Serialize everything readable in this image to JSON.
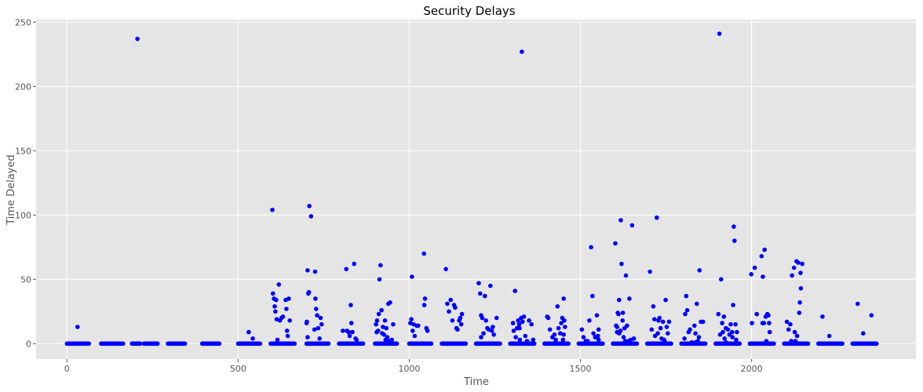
{
  "chart_data": {
    "type": "scatter",
    "title": "Security Delays",
    "xlabel": "Time",
    "ylabel": "Time Delayed",
    "xlim": [
      -90,
      2480
    ],
    "ylim": [
      -12,
      252
    ],
    "x_ticks": [
      0,
      500,
      1000,
      1500,
      2000
    ],
    "y_ticks": [
      0,
      50,
      100,
      150,
      200,
      250
    ],
    "grid": true,
    "style": "ggplot",
    "colors": {
      "marker": "#0000ff",
      "plot_background": "#e5e5e5",
      "grid": "#ffffff"
    },
    "zero_runs": [
      [
        0,
        65
      ],
      [
        100,
        165
      ],
      [
        190,
        215
      ],
      [
        225,
        265
      ],
      [
        295,
        345
      ],
      [
        395,
        445
      ],
      [
        500,
        565
      ],
      [
        595,
        665
      ],
      [
        700,
        765
      ],
      [
        795,
        865
      ],
      [
        900,
        965
      ],
      [
        1000,
        1065
      ],
      [
        1095,
        1165
      ],
      [
        1195,
        1265
      ],
      [
        1295,
        1365
      ],
      [
        1395,
        1465
      ],
      [
        1495,
        1565
      ],
      [
        1595,
        1665
      ],
      [
        1695,
        1765
      ],
      [
        1795,
        1865
      ],
      [
        1895,
        1965
      ],
      [
        1995,
        2065
      ],
      [
        2095,
        2165
      ],
      [
        2195,
        2265
      ],
      [
        2295,
        2365
      ]
    ],
    "points": [
      [
        31,
        13
      ],
      [
        206,
        237
      ],
      [
        1329,
        227
      ],
      [
        1906,
        241
      ],
      [
        531,
        9
      ],
      [
        543,
        4
      ],
      [
        600,
        104
      ],
      [
        602,
        39
      ],
      [
        605,
        35
      ],
      [
        607,
        29
      ],
      [
        609,
        25
      ],
      [
        611,
        34
      ],
      [
        613,
        19
      ],
      [
        615,
        3
      ],
      [
        619,
        46
      ],
      [
        622,
        18
      ],
      [
        627,
        20
      ],
      [
        631,
        21
      ],
      [
        639,
        34
      ],
      [
        641,
        27
      ],
      [
        643,
        10
      ],
      [
        645,
        6
      ],
      [
        648,
        35
      ],
      [
        651,
        18
      ],
      [
        703,
        57
      ],
      [
        705,
        39
      ],
      [
        707,
        40
      ],
      [
        708,
        107
      ],
      [
        713,
        99
      ],
      [
        700,
        16
      ],
      [
        701,
        17
      ],
      [
        703,
        5
      ],
      [
        723,
        11
      ],
      [
        725,
        56
      ],
      [
        726,
        35
      ],
      [
        728,
        27
      ],
      [
        731,
        22
      ],
      [
        734,
        12
      ],
      [
        738,
        4
      ],
      [
        741,
        20
      ],
      [
        744,
        15
      ],
      [
        806,
        10
      ],
      [
        816,
        58
      ],
      [
        818,
        10
      ],
      [
        823,
        9
      ],
      [
        826,
        6
      ],
      [
        829,
        30
      ],
      [
        831,
        16
      ],
      [
        834,
        9
      ],
      [
        839,
        62
      ],
      [
        843,
        4
      ],
      [
        846,
        3
      ],
      [
        906,
        18
      ],
      [
        909,
        10
      ],
      [
        911,
        23
      ],
      [
        913,
        50
      ],
      [
        916,
        61
      ],
      [
        919,
        26
      ],
      [
        921,
        8
      ],
      [
        923,
        13
      ],
      [
        926,
        7
      ],
      [
        929,
        18
      ],
      [
        931,
        3
      ],
      [
        933,
        12
      ],
      [
        936,
        5
      ],
      [
        939,
        31
      ],
      [
        941,
        2
      ],
      [
        944,
        32
      ],
      [
        949,
        3
      ],
      [
        953,
        15
      ],
      [
        903,
        15
      ],
      [
        905,
        9
      ],
      [
        1003,
        16
      ],
      [
        1006,
        19
      ],
      [
        1008,
        52
      ],
      [
        1010,
        10
      ],
      [
        1013,
        15
      ],
      [
        1016,
        6
      ],
      [
        1022,
        14
      ],
      [
        1026,
        14
      ],
      [
        1043,
        70
      ],
      [
        1044,
        30
      ],
      [
        1046,
        35
      ],
      [
        1050,
        12
      ],
      [
        1053,
        10
      ],
      [
        1107,
        58
      ],
      [
        1111,
        31
      ],
      [
        1116,
        25
      ],
      [
        1121,
        34
      ],
      [
        1126,
        18
      ],
      [
        1131,
        30
      ],
      [
        1134,
        28
      ],
      [
        1138,
        12
      ],
      [
        1141,
        11
      ],
      [
        1146,
        18
      ],
      [
        1149,
        20
      ],
      [
        1152,
        15
      ],
      [
        1154,
        23
      ],
      [
        1203,
        47
      ],
      [
        1207,
        39
      ],
      [
        1210,
        22
      ],
      [
        1213,
        20
      ],
      [
        1217,
        8
      ],
      [
        1221,
        37
      ],
      [
        1224,
        18
      ],
      [
        1228,
        12
      ],
      [
        1232,
        11
      ],
      [
        1237,
        45
      ],
      [
        1241,
        10
      ],
      [
        1244,
        13
      ],
      [
        1247,
        7
      ],
      [
        1210,
        5
      ],
      [
        1255,
        20
      ],
      [
        1303,
        16
      ],
      [
        1305,
        10
      ],
      [
        1309,
        41
      ],
      [
        1311,
        5
      ],
      [
        1315,
        12
      ],
      [
        1318,
        18
      ],
      [
        1321,
        15
      ],
      [
        1323,
        3
      ],
      [
        1327,
        20
      ],
      [
        1331,
        17
      ],
      [
        1335,
        21
      ],
      [
        1339,
        6
      ],
      [
        1344,
        2
      ],
      [
        1350,
        18
      ],
      [
        1357,
        15
      ],
      [
        1322,
        12
      ],
      [
        1362,
        3
      ],
      [
        1403,
        21
      ],
      [
        1406,
        20
      ],
      [
        1411,
        11
      ],
      [
        1418,
        5
      ],
      [
        1424,
        7
      ],
      [
        1428,
        3
      ],
      [
        1433,
        29
      ],
      [
        1436,
        12
      ],
      [
        1441,
        8
      ],
      [
        1444,
        16
      ],
      [
        1447,
        20
      ],
      [
        1451,
        35
      ],
      [
        1453,
        18
      ],
      [
        1455,
        13
      ],
      [
        1449,
        3
      ],
      [
        1451,
        7
      ],
      [
        1504,
        11
      ],
      [
        1509,
        5
      ],
      [
        1516,
        2
      ],
      [
        1521,
        2
      ],
      [
        1526,
        18
      ],
      [
        1531,
        75
      ],
      [
        1535,
        37
      ],
      [
        1538,
        8
      ],
      [
        1543,
        5
      ],
      [
        1548,
        22
      ],
      [
        1551,
        6
      ],
      [
        1553,
        11
      ],
      [
        1553,
        3
      ],
      [
        1602,
        78
      ],
      [
        1604,
        14
      ],
      [
        1607,
        9
      ],
      [
        1609,
        24
      ],
      [
        1611,
        23
      ],
      [
        1613,
        34
      ],
      [
        1617,
        10
      ],
      [
        1618,
        96
      ],
      [
        1620,
        62
      ],
      [
        1623,
        18
      ],
      [
        1626,
        5
      ],
      [
        1629,
        12
      ],
      [
        1633,
        53
      ],
      [
        1636,
        14
      ],
      [
        1641,
        2
      ],
      [
        1643,
        35
      ],
      [
        1647,
        3
      ],
      [
        1651,
        92
      ],
      [
        1656,
        4
      ],
      [
        1607,
        13
      ],
      [
        1613,
        8
      ],
      [
        1624,
        24
      ],
      [
        1631,
        2
      ],
      [
        1703,
        56
      ],
      [
        1708,
        11
      ],
      [
        1713,
        29
      ],
      [
        1716,
        19
      ],
      [
        1718,
        6
      ],
      [
        1723,
        98
      ],
      [
        1726,
        8
      ],
      [
        1728,
        18
      ],
      [
        1731,
        20
      ],
      [
        1734,
        12
      ],
      [
        1737,
        4
      ],
      [
        1741,
        17
      ],
      [
        1744,
        3
      ],
      [
        1749,
        34
      ],
      [
        1752,
        13
      ],
      [
        1755,
        8
      ],
      [
        1759,
        17
      ],
      [
        1746,
        2
      ],
      [
        1806,
        23
      ],
      [
        1809,
        37
      ],
      [
        1812,
        26
      ],
      [
        1816,
        9
      ],
      [
        1820,
        11
      ],
      [
        1825,
        1
      ],
      [
        1833,
        14
      ],
      [
        1836,
        8
      ],
      [
        1840,
        31
      ],
      [
        1843,
        2
      ],
      [
        1846,
        5
      ],
      [
        1848,
        57
      ],
      [
        1852,
        17
      ],
      [
        1858,
        17
      ],
      [
        1804,
        4
      ],
      [
        1836,
        1
      ],
      [
        1903,
        23
      ],
      [
        1908,
        7
      ],
      [
        1911,
        50
      ],
      [
        1914,
        16
      ],
      [
        1916,
        9
      ],
      [
        1919,
        21
      ],
      [
        1921,
        4
      ],
      [
        1925,
        1
      ],
      [
        1931,
        11
      ],
      [
        1935,
        7
      ],
      [
        1939,
        15
      ],
      [
        1943,
        9
      ],
      [
        1946,
        30
      ],
      [
        1948,
        91
      ],
      [
        1950,
        80
      ],
      [
        1953,
        15
      ],
      [
        1955,
        3
      ],
      [
        1957,
        9
      ],
      [
        1925,
        12
      ],
      [
        1944,
        5
      ],
      [
        1999,
        54
      ],
      [
        2001,
        16
      ],
      [
        2009,
        59
      ],
      [
        2015,
        23
      ],
      [
        2029,
        68
      ],
      [
        2033,
        52
      ],
      [
        2036,
        16
      ],
      [
        2038,
        73
      ],
      [
        2041,
        21
      ],
      [
        2043,
        2
      ],
      [
        2046,
        23
      ],
      [
        2049,
        22
      ],
      [
        2051,
        16
      ],
      [
        2053,
        9
      ],
      [
        2032,
        16
      ],
      [
        2103,
        17
      ],
      [
        2108,
        11
      ],
      [
        2113,
        15
      ],
      [
        2118,
        53
      ],
      [
        2124,
        59
      ],
      [
        2126,
        9
      ],
      [
        2131,
        64
      ],
      [
        2133,
        6
      ],
      [
        2136,
        63
      ],
      [
        2139,
        24
      ],
      [
        2141,
        32
      ],
      [
        2143,
        55
      ],
      [
        2144,
        43
      ],
      [
        2148,
        62
      ],
      [
        2116,
        2
      ],
      [
        2128,
        2
      ],
      [
        2207,
        21
      ],
      [
        2227,
        6
      ],
      [
        2310,
        31
      ],
      [
        2326,
        8
      ],
      [
        2350,
        22
      ]
    ]
  }
}
